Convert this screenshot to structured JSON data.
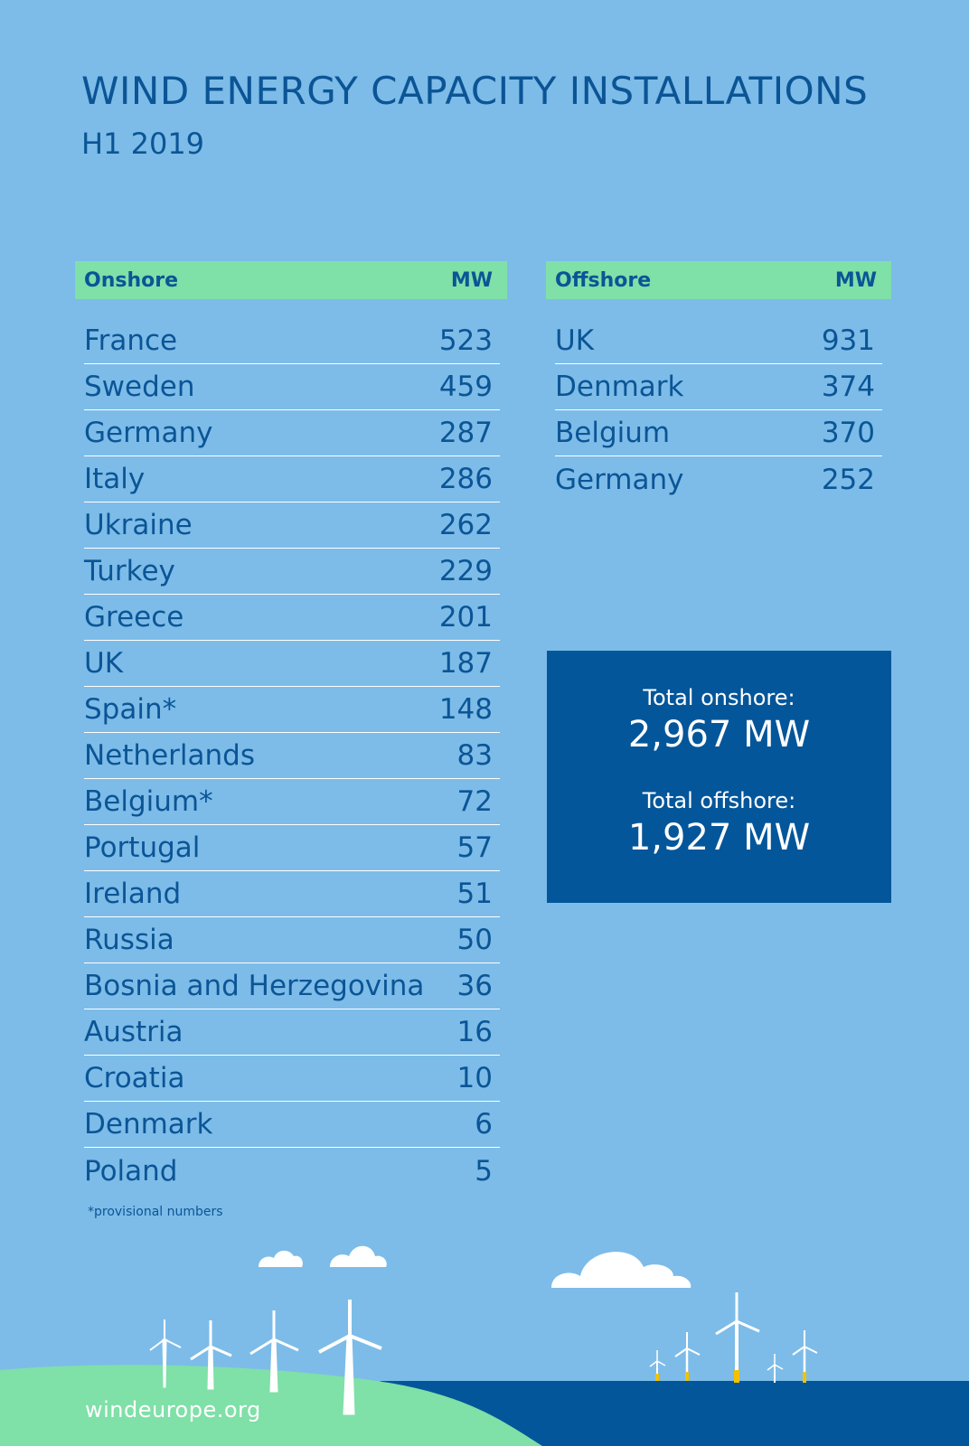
{
  "title": "WIND ENERGY CAPACITY INSTALLATIONS",
  "subtitle": "H1 2019",
  "chart_data": [
    {
      "type": "table",
      "header": {
        "label": "Onshore",
        "unit": "MW"
      },
      "rows": [
        {
          "country": "France",
          "value": 523
        },
        {
          "country": "Sweden",
          "value": 459
        },
        {
          "country": "Germany",
          "value": 287
        },
        {
          "country": "Italy",
          "value": 286
        },
        {
          "country": "Ukraine",
          "value": 262
        },
        {
          "country": "Turkey",
          "value": 229
        },
        {
          "country": "Greece",
          "value": 201
        },
        {
          "country": "UK",
          "value": 187
        },
        {
          "country": "Spain*",
          "value": 148
        },
        {
          "country": "Netherlands",
          "value": 83
        },
        {
          "country": "Belgium*",
          "value": 72
        },
        {
          "country": "Portugal",
          "value": 57
        },
        {
          "country": "Ireland",
          "value": 51
        },
        {
          "country": "Russia",
          "value": 50
        },
        {
          "country": "Bosnia and Herzegovina",
          "value": 36
        },
        {
          "country": "Austria",
          "value": 16
        },
        {
          "country": "Croatia",
          "value": 10
        },
        {
          "country": "Denmark",
          "value": 6
        },
        {
          "country": "Poland",
          "value": 5
        }
      ]
    },
    {
      "type": "table",
      "header": {
        "label": "Offshore",
        "unit": "MW"
      },
      "rows": [
        {
          "country": "UK",
          "value": 931
        },
        {
          "country": "Denmark",
          "value": 374
        },
        {
          "country": "Belgium",
          "value": 370
        },
        {
          "country": "Germany",
          "value": 252
        }
      ]
    }
  ],
  "totals": {
    "onshore_label": "Total onshore:",
    "onshore_value": "2,967 MW",
    "offshore_label": "Total offshore:",
    "offshore_value": "1,927 MW"
  },
  "footnote": "*provisional numbers",
  "url": "windeurope.org",
  "colors": {
    "background": "#7dbce8",
    "header_green": "#7fe0a8",
    "dark_blue": "#04569a",
    "text_blue": "#0b5596",
    "land_green": "#7fe0a8",
    "sea_blue": "#04569a"
  }
}
